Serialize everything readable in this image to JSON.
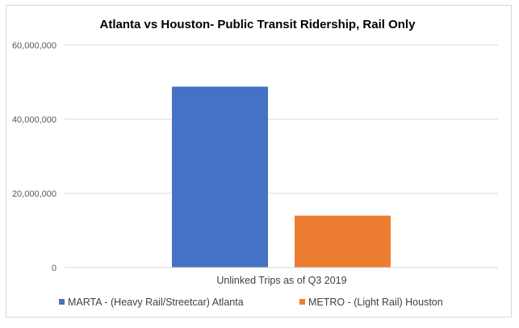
{
  "chart_data": {
    "type": "bar",
    "title": "Atlanta vs Houston- Public Transit Ridership, Rail Only",
    "xlabel": "Unlinked Trips as of Q3 2019",
    "ylabel": "",
    "ylim": [
      0,
      60000000
    ],
    "yticks": [
      0,
      20000000,
      40000000,
      60000000
    ],
    "ytick_labels": [
      "0",
      "20,000,000",
      "40,000,000",
      "60,000,000"
    ],
    "grid": true,
    "legend_position": "bottom",
    "series": [
      {
        "name": "MARTA - (Heavy Rail/Streetcar) Atlanta",
        "values": [
          48800000
        ],
        "color": "#4472C4"
      },
      {
        "name": "METRO - (Light Rail) Houston",
        "values": [
          14000000
        ],
        "color": "#ED7D31"
      }
    ]
  }
}
